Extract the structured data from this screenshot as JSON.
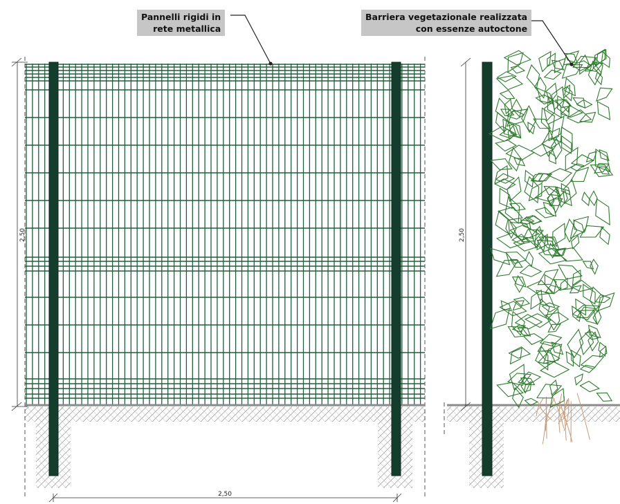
{
  "labels": {
    "mesh_panel_line1": "Pannelli rigidi in",
    "mesh_panel_line2": "rete metallica",
    "hedge_line1": "Barriera vegetazionale realizzata",
    "hedge_line2": "con essenze autoctone"
  },
  "dimensions": {
    "height_left": "2,50",
    "height_right": "2,50",
    "width_bottom": "2,50"
  },
  "colors": {
    "mesh": "#1f5e3a",
    "post": "#143d2e",
    "leaf": "#2d7a2d",
    "root": "#c89a74",
    "ground": "#8a8a8a",
    "hatch": "#9a9a9a",
    "callout_bg": "#c6c6c6"
  }
}
